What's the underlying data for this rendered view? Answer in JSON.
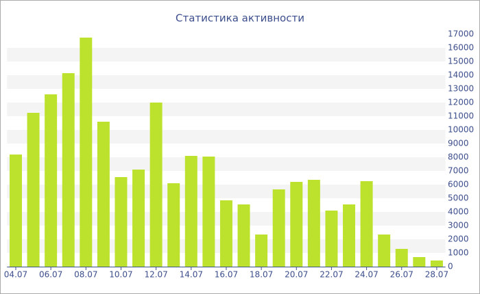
{
  "chart_data": {
    "type": "bar",
    "title": "Статистика активности",
    "categories": [
      "04.07",
      null,
      "06.07",
      null,
      "08.07",
      null,
      "10.07",
      null,
      "12.07",
      null,
      "14.07",
      null,
      "16.07",
      null,
      "18.07",
      null,
      "20.07",
      null,
      "22.07",
      null,
      "24.07",
      null,
      "26.07",
      null,
      "28.07"
    ],
    "values": [
      8200,
      11250,
      12600,
      14150,
      16750,
      10600,
      6550,
      7100,
      12000,
      6100,
      8100,
      8050,
      4850,
      4550,
      2350,
      5650,
      6200,
      6350,
      4100,
      4550,
      6250,
      2350,
      1300,
      700,
      450
    ],
    "color": "#bde22e",
    "ylim": [
      0,
      17000
    ],
    "yticks": [
      0,
      1000,
      2000,
      3000,
      4000,
      5000,
      6000,
      7000,
      8000,
      9000,
      10000,
      11000,
      12000,
      13000,
      14000,
      15000,
      16000,
      17000
    ],
    "grid": true
  }
}
